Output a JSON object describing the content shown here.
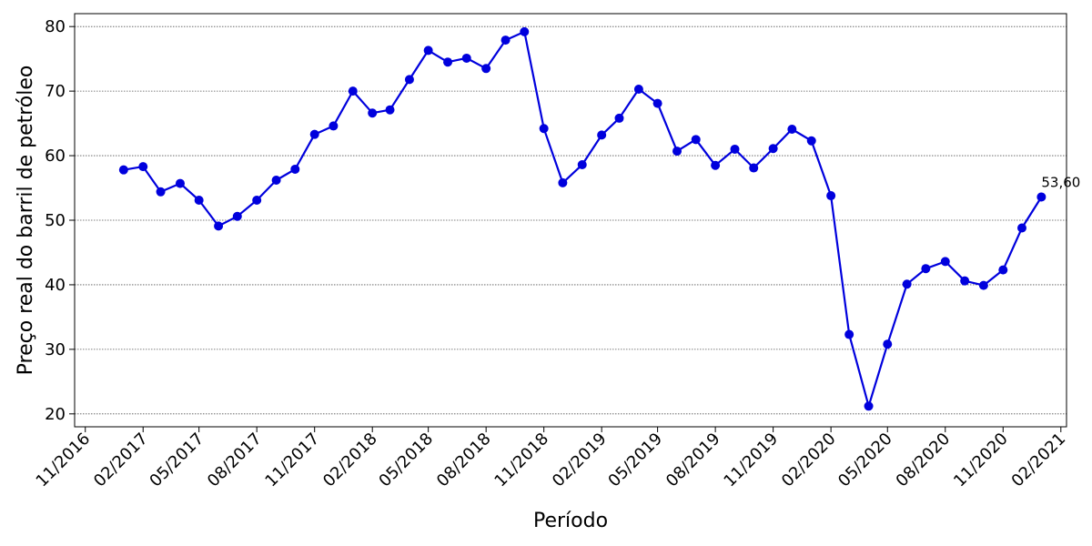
{
  "chart_data": {
    "type": "line",
    "title": "",
    "xlabel": "Período",
    "ylabel": "Preço real do barril de petróleo",
    "x_tick_labels": [
      "11/2016",
      "02/2017",
      "05/2017",
      "08/2017",
      "11/2017",
      "02/2018",
      "05/2018",
      "08/2018",
      "11/2018",
      "02/2019",
      "05/2019",
      "08/2019",
      "11/2019",
      "02/2020",
      "05/2020",
      "08/2020",
      "11/2020",
      "02/2021"
    ],
    "y_ticks": [
      20,
      30,
      40,
      50,
      60,
      70,
      80
    ],
    "ylim": [
      18,
      82
    ],
    "xlim": [
      "2016-10-15",
      "2021-02-10"
    ],
    "grid": "horizontal dotted",
    "color": "#0000dd",
    "series": [
      {
        "x": [
          "2017-01",
          "2017-02",
          "2017-03",
          "2017-04",
          "2017-05",
          "2017-06",
          "2017-07",
          "2017-08",
          "2017-09",
          "2017-10",
          "2017-11",
          "2017-12",
          "2018-01",
          "2018-02",
          "2018-03",
          "2018-04",
          "2018-05",
          "2018-06",
          "2018-07",
          "2018-08",
          "2018-09",
          "2018-10",
          "2018-11",
          "2018-12",
          "2019-01",
          "2019-02",
          "2019-03",
          "2019-04",
          "2019-05",
          "2019-06",
          "2019-07",
          "2019-08",
          "2019-09",
          "2019-10",
          "2019-11",
          "2019-12",
          "2020-01",
          "2020-02",
          "2020-03",
          "2020-04",
          "2020-05",
          "2020-06",
          "2020-07",
          "2020-08",
          "2020-09",
          "2020-10",
          "2020-11",
          "2020-12",
          "2021-01"
        ],
        "values": [
          57.8,
          58.3,
          54.4,
          55.7,
          53.1,
          49.1,
          50.6,
          53.1,
          56.2,
          57.9,
          63.3,
          64.6,
          70.0,
          66.6,
          67.1,
          71.8,
          76.3,
          74.5,
          75.1,
          73.5,
          77.9,
          79.2,
          64.2,
          55.8,
          58.6,
          63.2,
          65.8,
          70.3,
          68.1,
          60.7,
          62.5,
          58.5,
          61.0,
          58.1,
          61.1,
          64.1,
          62.3,
          53.8,
          32.3,
          21.2,
          30.8,
          40.1,
          42.5,
          43.6,
          40.6,
          39.9,
          42.3,
          48.8,
          53.6
        ]
      }
    ],
    "annotations": [
      {
        "label": "53,60",
        "x": "2021-01",
        "y": 53.6
      }
    ]
  }
}
